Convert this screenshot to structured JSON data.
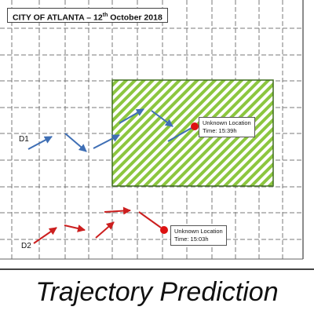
{
  "map": {
    "title_prefix": "CITY OF ATLANTA – 12",
    "title_sup": "th",
    "title_suffix": " October 2018"
  },
  "drones": [
    {
      "label": "D1",
      "unknown_location": "Unknown Location",
      "time": "Time: 15:39h"
    },
    {
      "label": "D2",
      "unknown_location": "Unknown Location",
      "time": "Time: 15:03h"
    }
  ],
  "caption": "Trajectory Prediction",
  "colors": {
    "zone_stripe": "#8cc63f",
    "zone_border": "#3f6d1e",
    "d1_track": "#3f6fb5",
    "d2_track": "#cc1f1f",
    "prediction_dot": "#dd1111",
    "grid": "#7a7a7a"
  }
}
